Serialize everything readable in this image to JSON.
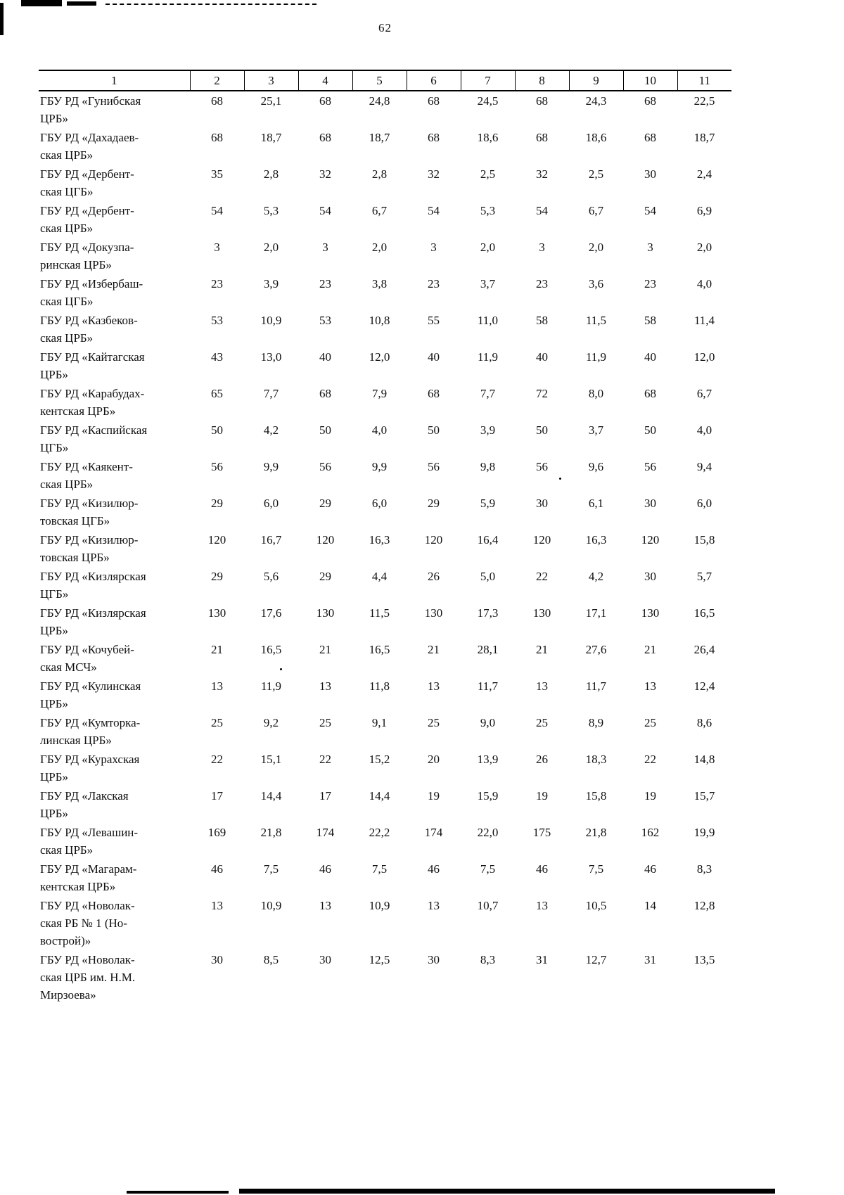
{
  "page": {
    "number": "62"
  },
  "table": {
    "header": [
      "1",
      "2",
      "3",
      "4",
      "5",
      "6",
      "7",
      "8",
      "9",
      "10",
      "11"
    ],
    "rows": [
      {
        "name": [
          "ГБУ РД «Гунибская",
          "ЦРБ»"
        ],
        "values": [
          "68",
          "25,1",
          "68",
          "24,8",
          "68",
          "24,5",
          "68",
          "24,3",
          "68",
          "22,5"
        ]
      },
      {
        "name": [
          "ГБУ РД «Дахадаев-",
          "ская ЦРБ»"
        ],
        "values": [
          "68",
          "18,7",
          "68",
          "18,7",
          "68",
          "18,6",
          "68",
          "18,6",
          "68",
          "18,7"
        ]
      },
      {
        "name": [
          "ГБУ РД «Дербент-",
          "ская ЦГБ»"
        ],
        "values": [
          "35",
          "2,8",
          "32",
          "2,8",
          "32",
          "2,5",
          "32",
          "2,5",
          "30",
          "2,4"
        ]
      },
      {
        "name": [
          "ГБУ РД «Дербент-",
          "ская ЦРБ»"
        ],
        "values": [
          "54",
          "5,3",
          "54",
          "6,7",
          "54",
          "5,3",
          "54",
          "6,7",
          "54",
          "6,9"
        ]
      },
      {
        "name": [
          "ГБУ РД «Докузпа-",
          "ринская ЦРБ»"
        ],
        "values": [
          "3",
          "2,0",
          "3",
          "2,0",
          "3",
          "2,0",
          "3",
          "2,0",
          "3",
          "2,0"
        ]
      },
      {
        "name": [
          "ГБУ РД «Избербаш-",
          "ская ЦГБ»"
        ],
        "values": [
          "23",
          "3,9",
          "23",
          "3,8",
          "23",
          "3,7",
          "23",
          "3,6",
          "23",
          "4,0"
        ]
      },
      {
        "name": [
          "ГБУ РД «Казбеков-",
          "ская ЦРБ»"
        ],
        "values": [
          "53",
          "10,9",
          "53",
          "10,8",
          "55",
          "11,0",
          "58",
          "11,5",
          "58",
          "11,4"
        ]
      },
      {
        "name": [
          "ГБУ РД «Кайтагская",
          "ЦРБ»"
        ],
        "values": [
          "43",
          "13,0",
          "40",
          "12,0",
          "40",
          "11,9",
          "40",
          "11,9",
          "40",
          "12,0"
        ]
      },
      {
        "name": [
          "ГБУ РД «Карабудах-",
          "кентская ЦРБ»"
        ],
        "values": [
          "65",
          "7,7",
          "68",
          "7,9",
          "68",
          "7,7",
          "72",
          "8,0",
          "68",
          "6,7"
        ]
      },
      {
        "name": [
          "ГБУ РД «Каспийская",
          "ЦГБ»"
        ],
        "values": [
          "50",
          "4,2",
          "50",
          "4,0",
          "50",
          "3,9",
          "50",
          "3,7",
          "50",
          "4,0"
        ]
      },
      {
        "name": [
          "ГБУ РД «Каякент-",
          "ская ЦРБ»"
        ],
        "values": [
          "56",
          "9,9",
          "56",
          "9,9",
          "56",
          "9,8",
          "56",
          "9,6",
          "56",
          "9,4"
        ]
      },
      {
        "name": [
          "ГБУ РД «Кизилюр-",
          "товская ЦГБ»"
        ],
        "values": [
          "29",
          "6,0",
          "29",
          "6,0",
          "29",
          "5,9",
          "30",
          "6,1",
          "30",
          "6,0"
        ]
      },
      {
        "name": [
          "ГБУ РД «Кизилюр-",
          "товская ЦРБ»"
        ],
        "values": [
          "120",
          "16,7",
          "120",
          "16,3",
          "120",
          "16,4",
          "120",
          "16,3",
          "120",
          "15,8"
        ]
      },
      {
        "name": [
          "ГБУ РД «Кизлярская",
          "ЦГБ»"
        ],
        "values": [
          "29",
          "5,6",
          "29",
          "4,4",
          "26",
          "5,0",
          "22",
          "4,2",
          "30",
          "5,7"
        ]
      },
      {
        "name": [
          "ГБУ РД «Кизлярская",
          "ЦРБ»"
        ],
        "values": [
          "130",
          "17,6",
          "130",
          "11,5",
          "130",
          "17,3",
          "130",
          "17,1",
          "130",
          "16,5"
        ]
      },
      {
        "name": [
          "ГБУ РД «Кочубей-",
          "ская МСЧ»"
        ],
        "values": [
          "21",
          "16,5",
          "21",
          "16,5",
          "21",
          "28,1",
          "21",
          "27,6",
          "21",
          "26,4"
        ]
      },
      {
        "name": [
          "ГБУ РД «Кулинская",
          "ЦРБ»"
        ],
        "values": [
          "13",
          "11,9",
          "13",
          "11,8",
          "13",
          "11,7",
          "13",
          "11,7",
          "13",
          "12,4"
        ]
      },
      {
        "name": [
          "ГБУ РД «Кумторка-",
          "линская ЦРБ»"
        ],
        "values": [
          "25",
          "9,2",
          "25",
          "9,1",
          "25",
          "9,0",
          "25",
          "8,9",
          "25",
          "8,6"
        ]
      },
      {
        "name": [
          "ГБУ РД «Курахская",
          "ЦРБ»"
        ],
        "values": [
          "22",
          "15,1",
          "22",
          "15,2",
          "20",
          "13,9",
          "26",
          "18,3",
          "22",
          "14,8"
        ]
      },
      {
        "name": [
          "ГБУ РД «Лакская",
          "ЦРБ»"
        ],
        "values": [
          "17",
          "14,4",
          "17",
          "14,4",
          "19",
          "15,9",
          "19",
          "15,8",
          "19",
          "15,7"
        ]
      },
      {
        "name": [
          "ГБУ РД «Левашин-",
          "ская ЦРБ»"
        ],
        "values": [
          "169",
          "21,8",
          "174",
          "22,2",
          "174",
          "22,0",
          "175",
          "21,8",
          "162",
          "19,9"
        ]
      },
      {
        "name": [
          "ГБУ РД «Магарам-",
          "кентская ЦРБ»"
        ],
        "values": [
          "46",
          "7,5",
          "46",
          "7,5",
          "46",
          "7,5",
          "46",
          "7,5",
          "46",
          "8,3"
        ]
      },
      {
        "name": [
          "ГБУ РД «Новолак-",
          "ская РБ № 1 (Но-",
          "вострой)»"
        ],
        "values": [
          "13",
          "10,9",
          "13",
          "10,9",
          "13",
          "10,7",
          "13",
          "10,5",
          "14",
          "12,8"
        ]
      },
      {
        "name": [
          "ГБУ РД «Новолак-",
          "ская ЦРБ им. Н.М.",
          "Мирзоева»"
        ],
        "values": [
          "30",
          "8,5",
          "30",
          "12,5",
          "30",
          "8,3",
          "31",
          "12,7",
          "31",
          "13,5"
        ]
      }
    ]
  }
}
